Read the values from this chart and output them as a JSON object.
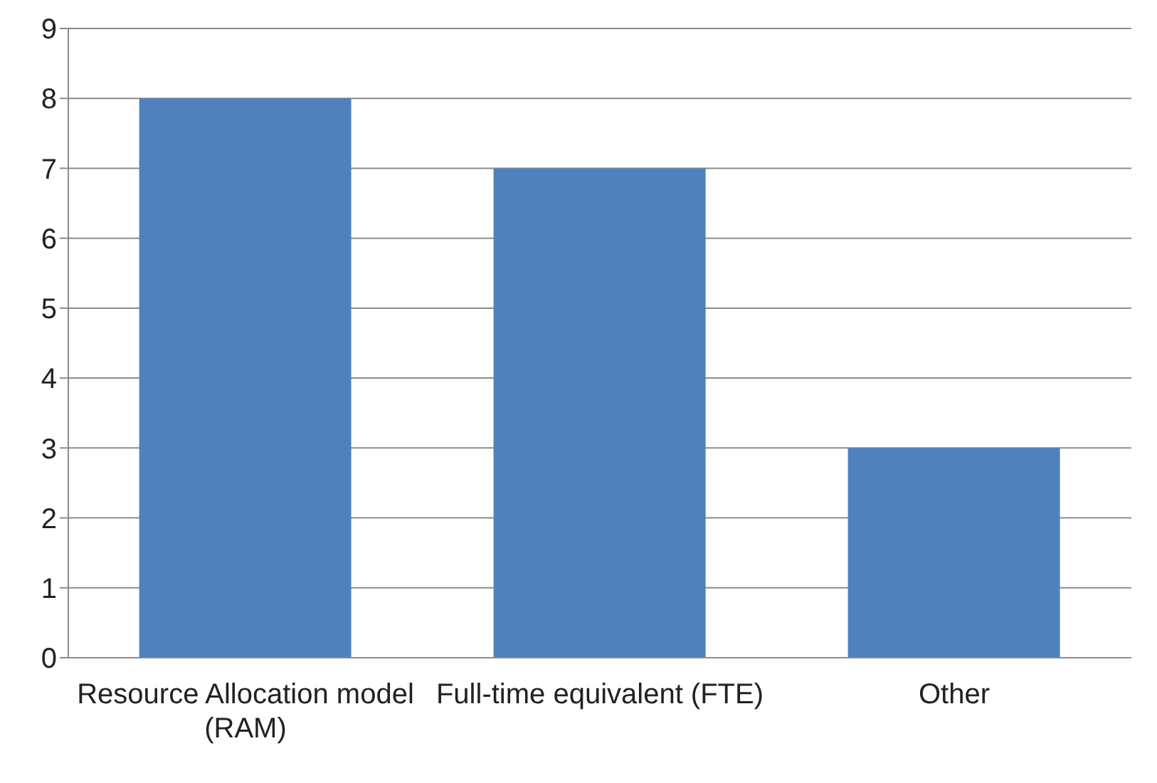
{
  "chart_data": {
    "type": "bar",
    "categories": [
      "Resource Allocation model (RAM)",
      "Full-time equivalent (FTE)",
      "Other"
    ],
    "values": [
      8,
      7,
      3
    ],
    "color": "#4f81bd",
    "ylim": [
      0,
      9
    ],
    "yticks": [
      0,
      1,
      2,
      3,
      4,
      5,
      6,
      7,
      8,
      9
    ],
    "grid": "y"
  }
}
